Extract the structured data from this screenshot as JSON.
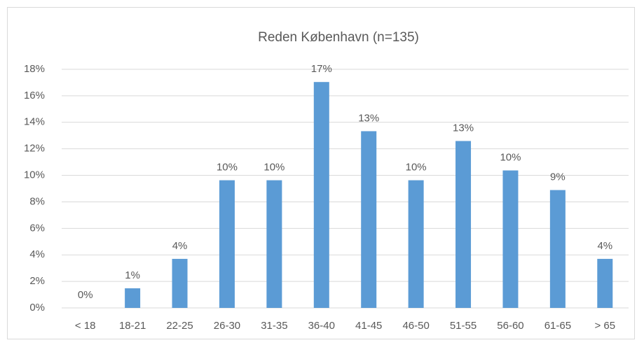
{
  "chart_data": {
    "type": "bar",
    "title": "Reden København (n=135)",
    "categories": [
      "< 18",
      "18-21",
      "22-25",
      "26-30",
      "31-35",
      "36-40",
      "41-45",
      "46-50",
      "51-55",
      "56-60",
      "61-65",
      "> 65"
    ],
    "values": [
      0,
      1.48,
      3.7,
      9.63,
      9.63,
      17.04,
      13.33,
      9.63,
      12.59,
      10.37,
      8.89,
      3.7
    ],
    "value_labels": [
      "0%",
      "1%",
      "4%",
      "10%",
      "10%",
      "17%",
      "13%",
      "10%",
      "13%",
      "10%",
      "9%",
      "4%"
    ],
    "color": "#5b9bd5",
    "ylim": [
      0,
      18
    ],
    "yticks": [
      {
        "value": 0,
        "label": "0%"
      },
      {
        "value": 2,
        "label": "2%"
      },
      {
        "value": 4,
        "label": "4%"
      },
      {
        "value": 6,
        "label": "6%"
      },
      {
        "value": 8,
        "label": "8%"
      },
      {
        "value": 10,
        "label": "10%"
      },
      {
        "value": 12,
        "label": "12%"
      },
      {
        "value": 14,
        "label": "14%"
      },
      {
        "value": 16,
        "label": "16%"
      },
      {
        "value": 18,
        "label": "18%"
      }
    ],
    "grid": true
  }
}
